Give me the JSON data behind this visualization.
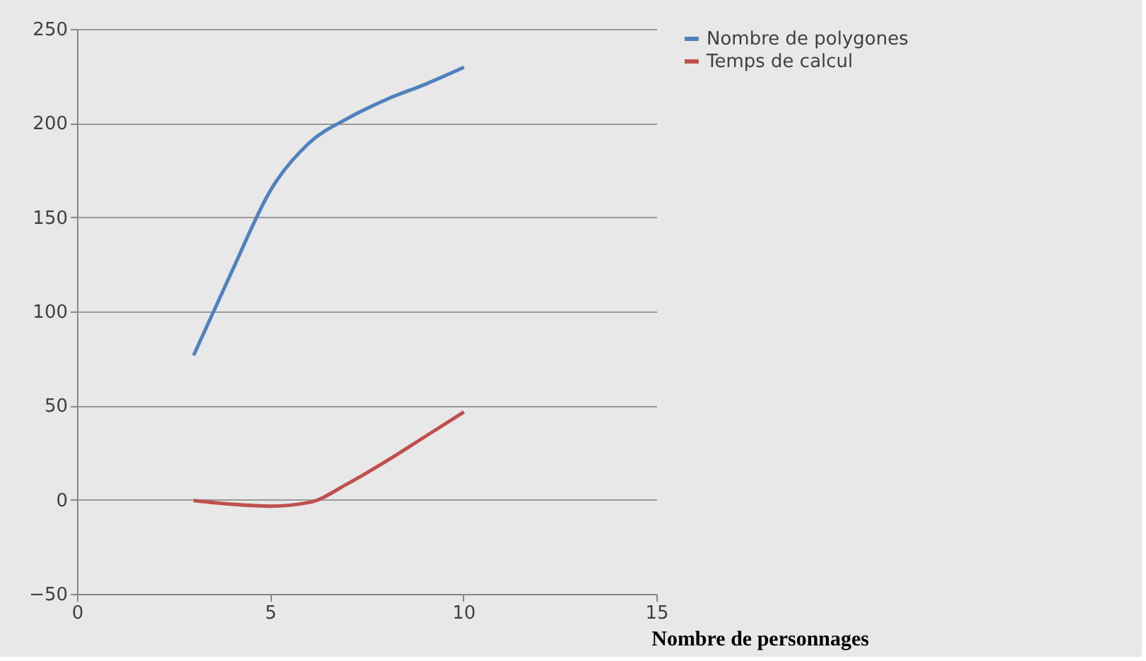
{
  "chart_data": {
    "type": "line",
    "xlabel": "Nombre de personnages",
    "x": [
      3,
      4,
      5,
      6,
      7,
      8,
      9,
      10
    ],
    "series": [
      {
        "name": "Nombre de polygones",
        "color": "#4f81bd",
        "values": [
          77,
          122,
          165,
          190,
          203,
          213,
          221,
          230
        ]
      },
      {
        "name": "Temps de calcul",
        "color": "#c0504d",
        "values": [
          0,
          -2,
          -3,
          -1,
          9,
          21,
          34,
          47
        ]
      }
    ],
    "xlim": [
      0,
      15
    ],
    "xticks": [
      0,
      5,
      10,
      15
    ],
    "ylim": [
      -50,
      250
    ],
    "yticks": [
      -50,
      0,
      50,
      100,
      150,
      200,
      250
    ],
    "grid": "y",
    "legend": "right",
    "line_style": "solid",
    "marker": "none"
  }
}
